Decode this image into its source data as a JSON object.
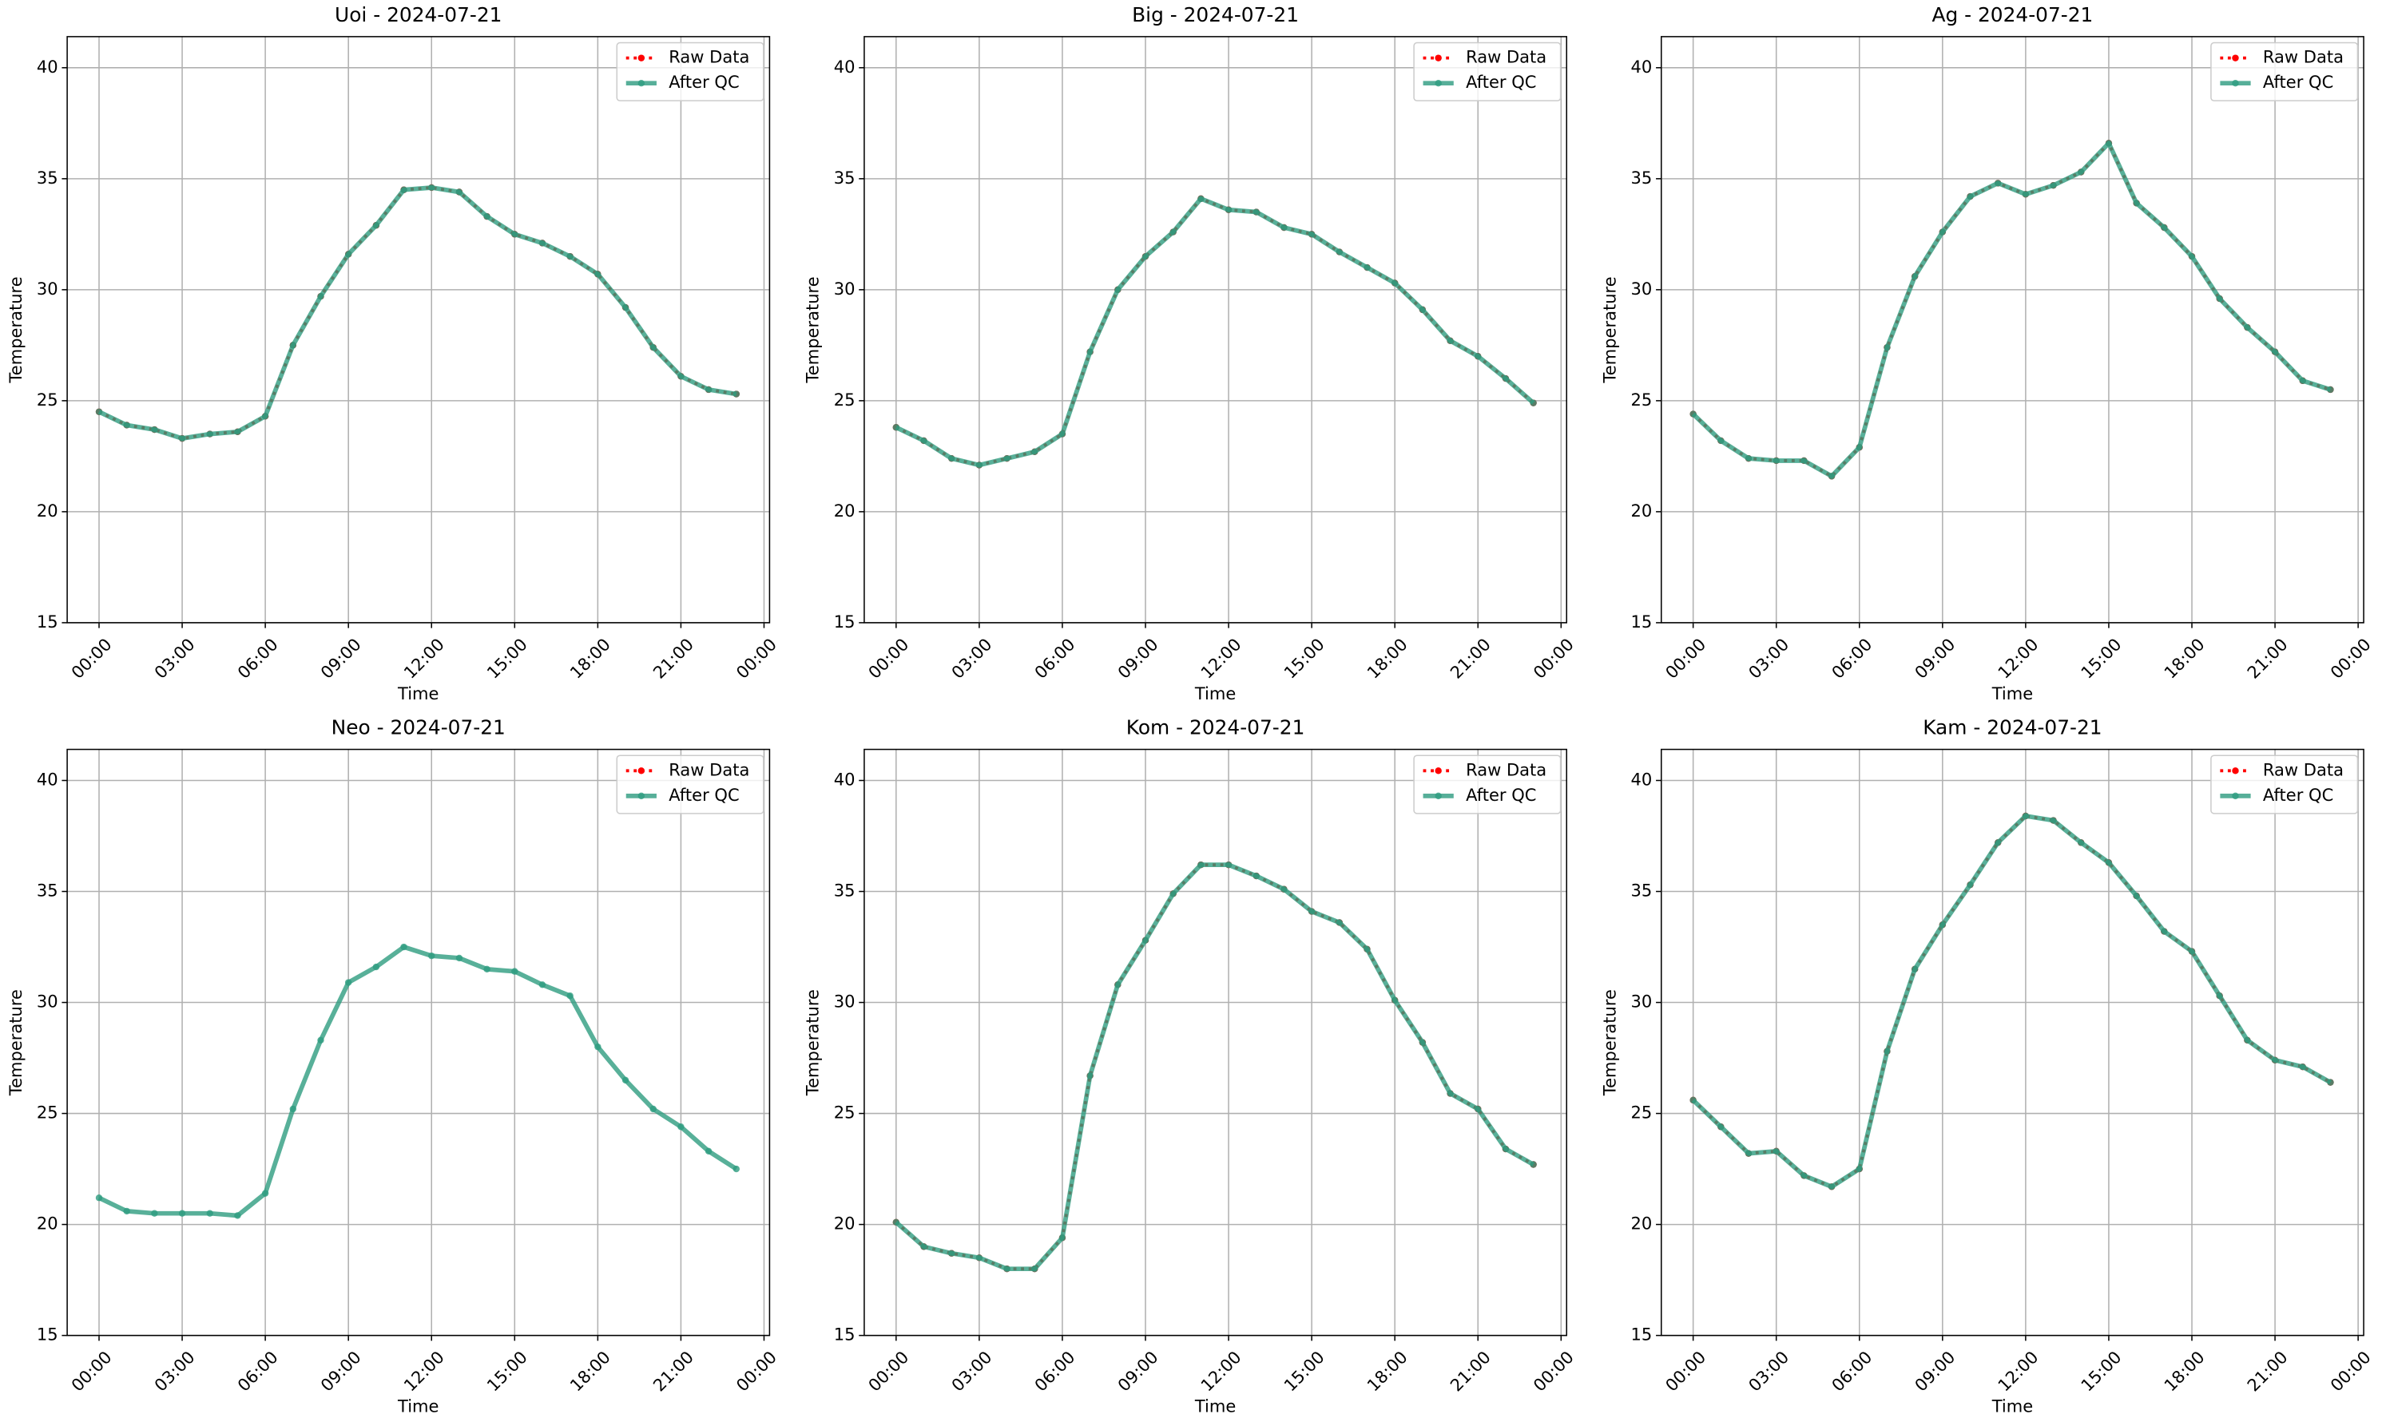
{
  "chart_data": [
    {
      "type": "line",
      "title": "Uoi - 2024-07-21",
      "xlabel": "Time",
      "ylabel": "Temperature",
      "x": [
        0,
        1,
        2,
        3,
        4,
        5,
        6,
        7,
        8,
        9,
        10,
        11,
        12,
        13,
        14,
        15,
        16,
        17,
        18,
        19,
        20,
        21,
        22,
        23
      ],
      "xlim": [
        -1.15,
        24.2
      ],
      "xticks": [
        {
          "value": 0,
          "label": "00:00"
        },
        {
          "value": 3,
          "label": "03:00"
        },
        {
          "value": 6,
          "label": "06:00"
        },
        {
          "value": 9,
          "label": "09:00"
        },
        {
          "value": 12,
          "label": "12:00"
        },
        {
          "value": 15,
          "label": "15:00"
        },
        {
          "value": 18,
          "label": "18:00"
        },
        {
          "value": 21,
          "label": "21:00"
        },
        {
          "value": 24,
          "label": "00:00"
        }
      ],
      "ylim": [
        15,
        41.4
      ],
      "yticks": [
        15,
        20,
        25,
        30,
        35,
        40
      ],
      "grid": true,
      "legend": "upper right",
      "series": [
        {
          "name": "Raw Data",
          "color": "#ff0000",
          "values": [
            24.5,
            23.9,
            23.7,
            23.3,
            23.5,
            23.6,
            24.3,
            27.5,
            29.7,
            31.6,
            32.9,
            34.5,
            34.6,
            34.4,
            33.3,
            32.5,
            32.1,
            31.5,
            30.7,
            29.2,
            27.4,
            26.1,
            25.5,
            25.3
          ]
        },
        {
          "name": "After QC",
          "color": "#2e9c80",
          "values": [
            24.5,
            23.9,
            23.7,
            23.3,
            23.5,
            23.6,
            24.3,
            27.5,
            29.7,
            31.6,
            32.9,
            34.5,
            34.6,
            34.4,
            33.3,
            32.5,
            32.1,
            31.5,
            30.7,
            29.2,
            27.4,
            26.1,
            25.5,
            25.3
          ]
        }
      ]
    },
    {
      "type": "line",
      "title": "Big - 2024-07-21",
      "xlabel": "Time",
      "ylabel": "Temperature",
      "x": [
        0,
        1,
        2,
        3,
        4,
        5,
        6,
        7,
        8,
        9,
        10,
        11,
        12,
        13,
        14,
        15,
        16,
        17,
        18,
        19,
        20,
        21,
        22,
        23
      ],
      "xlim": [
        -1.15,
        24.2
      ],
      "xticks": [
        {
          "value": 0,
          "label": "00:00"
        },
        {
          "value": 3,
          "label": "03:00"
        },
        {
          "value": 6,
          "label": "06:00"
        },
        {
          "value": 9,
          "label": "09:00"
        },
        {
          "value": 12,
          "label": "12:00"
        },
        {
          "value": 15,
          "label": "15:00"
        },
        {
          "value": 18,
          "label": "18:00"
        },
        {
          "value": 21,
          "label": "21:00"
        },
        {
          "value": 24,
          "label": "00:00"
        }
      ],
      "ylim": [
        15,
        41.4
      ],
      "yticks": [
        15,
        20,
        25,
        30,
        35,
        40
      ],
      "grid": true,
      "legend": "upper right",
      "series": [
        {
          "name": "Raw Data",
          "color": "#ff0000",
          "values": [
            23.8,
            23.2,
            22.4,
            22.1,
            22.4,
            22.7,
            23.5,
            27.2,
            30.0,
            31.5,
            32.6,
            34.1,
            33.6,
            33.5,
            32.8,
            32.5,
            31.7,
            31.0,
            30.3,
            29.1,
            27.7,
            27.0,
            26.0,
            24.9
          ]
        },
        {
          "name": "After QC",
          "color": "#2e9c80",
          "values": [
            23.8,
            23.2,
            22.4,
            22.1,
            22.4,
            22.7,
            23.5,
            27.2,
            30.0,
            31.5,
            32.6,
            34.1,
            33.6,
            33.5,
            32.8,
            32.5,
            31.7,
            31.0,
            30.3,
            29.1,
            27.7,
            27.0,
            26.0,
            24.9
          ]
        }
      ]
    },
    {
      "type": "line",
      "title": "Ag - 2024-07-21",
      "xlabel": "Time",
      "ylabel": "Temperature",
      "x": [
        0,
        1,
        2,
        3,
        4,
        5,
        6,
        7,
        8,
        9,
        10,
        11,
        12,
        13,
        14,
        15,
        16,
        17,
        18,
        19,
        20,
        21,
        22,
        23
      ],
      "xlim": [
        -1.15,
        24.2
      ],
      "xticks": [
        {
          "value": 0,
          "label": "00:00"
        },
        {
          "value": 3,
          "label": "03:00"
        },
        {
          "value": 6,
          "label": "06:00"
        },
        {
          "value": 9,
          "label": "09:00"
        },
        {
          "value": 12,
          "label": "12:00"
        },
        {
          "value": 15,
          "label": "15:00"
        },
        {
          "value": 18,
          "label": "18:00"
        },
        {
          "value": 21,
          "label": "21:00"
        },
        {
          "value": 24,
          "label": "00:00"
        }
      ],
      "ylim": [
        15,
        41.4
      ],
      "yticks": [
        15,
        20,
        25,
        30,
        35,
        40
      ],
      "grid": true,
      "legend": "upper right",
      "series": [
        {
          "name": "Raw Data",
          "color": "#ff0000",
          "values": [
            24.4,
            23.2,
            22.4,
            22.3,
            22.3,
            21.6,
            22.9,
            27.4,
            30.6,
            32.6,
            34.2,
            34.8,
            34.3,
            34.7,
            35.3,
            36.6,
            33.9,
            32.8,
            31.5,
            29.6,
            28.3,
            27.2,
            25.9,
            25.5
          ]
        },
        {
          "name": "After QC",
          "color": "#2e9c80",
          "values": [
            24.4,
            23.2,
            22.4,
            22.3,
            22.3,
            21.6,
            22.9,
            27.4,
            30.6,
            32.6,
            34.2,
            34.8,
            34.3,
            34.7,
            35.3,
            36.6,
            33.9,
            32.8,
            31.5,
            29.6,
            28.3,
            27.2,
            25.9,
            25.5
          ]
        }
      ]
    },
    {
      "type": "line",
      "title": "Neo - 2024-07-21",
      "xlabel": "Time",
      "ylabel": "Temperature",
      "x": [
        0,
        1,
        2,
        3,
        4,
        5,
        6,
        7,
        8,
        9,
        10,
        11,
        12,
        13,
        14,
        15,
        16,
        17,
        18,
        19,
        20,
        21,
        22,
        23
      ],
      "xlim": [
        -1.15,
        24.2
      ],
      "xticks": [
        {
          "value": 0,
          "label": "00:00"
        },
        {
          "value": 3,
          "label": "03:00"
        },
        {
          "value": 6,
          "label": "06:00"
        },
        {
          "value": 9,
          "label": "09:00"
        },
        {
          "value": 12,
          "label": "12:00"
        },
        {
          "value": 15,
          "label": "15:00"
        },
        {
          "value": 18,
          "label": "18:00"
        },
        {
          "value": 21,
          "label": "21:00"
        },
        {
          "value": 24,
          "label": "00:00"
        }
      ],
      "ylim": [
        15,
        41.4
      ],
      "yticks": [
        15,
        20,
        25,
        30,
        35,
        40
      ],
      "grid": true,
      "legend": "upper right",
      "series": [
        {
          "name": "Raw Data",
          "color": "#ff0000",
          "values": [
            null,
            null,
            null,
            null,
            null,
            null,
            null,
            null,
            null,
            null,
            null,
            null,
            null,
            null,
            null,
            null,
            null,
            null,
            null,
            null,
            null,
            null,
            null,
            null
          ]
        },
        {
          "name": "After QC",
          "color": "#2e9c80",
          "values": [
            21.2,
            20.6,
            20.5,
            20.5,
            20.5,
            20.4,
            21.4,
            25.2,
            28.3,
            30.9,
            31.6,
            32.5,
            32.1,
            32.0,
            31.5,
            31.4,
            30.8,
            30.3,
            28.0,
            26.5,
            25.2,
            24.4,
            23.3,
            22.5
          ]
        }
      ]
    },
    {
      "type": "line",
      "title": "Kom - 2024-07-21",
      "xlabel": "Time",
      "ylabel": "Temperature",
      "x": [
        0,
        1,
        2,
        3,
        4,
        5,
        6,
        7,
        8,
        9,
        10,
        11,
        12,
        13,
        14,
        15,
        16,
        17,
        18,
        19,
        20,
        21,
        22,
        23
      ],
      "xlim": [
        -1.15,
        24.2
      ],
      "xticks": [
        {
          "value": 0,
          "label": "00:00"
        },
        {
          "value": 3,
          "label": "03:00"
        },
        {
          "value": 6,
          "label": "06:00"
        },
        {
          "value": 9,
          "label": "09:00"
        },
        {
          "value": 12,
          "label": "12:00"
        },
        {
          "value": 15,
          "label": "15:00"
        },
        {
          "value": 18,
          "label": "18:00"
        },
        {
          "value": 21,
          "label": "21:00"
        },
        {
          "value": 24,
          "label": "00:00"
        }
      ],
      "ylim": [
        15,
        41.4
      ],
      "yticks": [
        15,
        20,
        25,
        30,
        35,
        40
      ],
      "grid": true,
      "legend": "upper right",
      "series": [
        {
          "name": "Raw Data",
          "color": "#ff0000",
          "values": [
            20.1,
            19.0,
            18.7,
            18.5,
            18.0,
            18.0,
            19.4,
            26.7,
            30.8,
            32.8,
            34.9,
            36.2,
            36.2,
            35.7,
            35.1,
            34.1,
            33.6,
            32.4,
            30.1,
            28.2,
            25.9,
            25.2,
            23.4,
            22.7
          ]
        },
        {
          "name": "After QC",
          "color": "#2e9c80",
          "values": [
            20.1,
            19.0,
            18.7,
            18.5,
            18.0,
            18.0,
            19.4,
            26.7,
            30.8,
            32.8,
            34.9,
            36.2,
            36.2,
            35.7,
            35.1,
            34.1,
            33.6,
            32.4,
            30.1,
            28.2,
            25.9,
            25.2,
            23.4,
            22.7
          ]
        }
      ]
    },
    {
      "type": "line",
      "title": "Kam - 2024-07-21",
      "xlabel": "Time",
      "ylabel": "Temperature",
      "x": [
        0,
        1,
        2,
        3,
        4,
        5,
        6,
        7,
        8,
        9,
        10,
        11,
        12,
        13,
        14,
        15,
        16,
        17,
        18,
        19,
        20,
        21,
        22,
        23
      ],
      "xlim": [
        -1.15,
        24.2
      ],
      "xticks": [
        {
          "value": 0,
          "label": "00:00"
        },
        {
          "value": 3,
          "label": "03:00"
        },
        {
          "value": 6,
          "label": "06:00"
        },
        {
          "value": 9,
          "label": "09:00"
        },
        {
          "value": 12,
          "label": "12:00"
        },
        {
          "value": 15,
          "label": "15:00"
        },
        {
          "value": 18,
          "label": "18:00"
        },
        {
          "value": 21,
          "label": "21:00"
        },
        {
          "value": 24,
          "label": "00:00"
        }
      ],
      "ylim": [
        15,
        41.4
      ],
      "yticks": [
        15,
        20,
        25,
        30,
        35,
        40
      ],
      "grid": true,
      "legend": "upper right",
      "series": [
        {
          "name": "Raw Data",
          "color": "#ff0000",
          "values": [
            25.6,
            24.4,
            23.2,
            23.3,
            22.2,
            21.7,
            22.5,
            27.8,
            31.5,
            33.5,
            35.3,
            37.2,
            38.4,
            38.2,
            37.2,
            36.3,
            34.8,
            33.2,
            32.3,
            30.3,
            28.3,
            27.4,
            27.1,
            26.4
          ]
        },
        {
          "name": "After QC",
          "color": "#2e9c80",
          "values": [
            25.6,
            24.4,
            23.2,
            23.3,
            22.2,
            21.7,
            22.5,
            27.8,
            31.5,
            33.5,
            35.3,
            37.2,
            38.4,
            38.2,
            37.2,
            36.3,
            34.8,
            33.2,
            32.3,
            30.3,
            28.3,
            27.4,
            27.1,
            26.4
          ]
        }
      ]
    }
  ]
}
